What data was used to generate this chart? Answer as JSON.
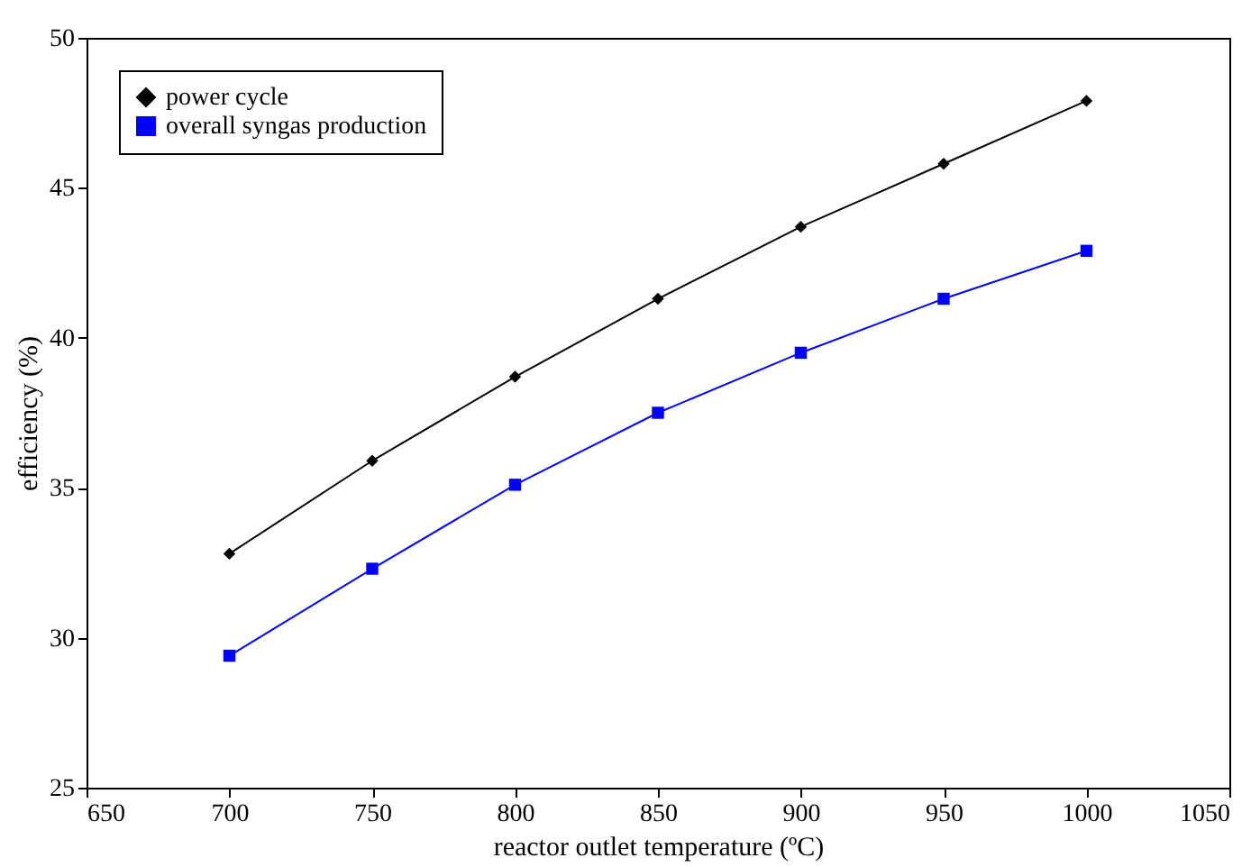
{
  "chart_data": {
    "type": "line",
    "xlabel": "reactor outlet temperature (ºC)",
    "ylabel": "efficiency (%)",
    "x": [
      700,
      750,
      800,
      850,
      900,
      950,
      1000
    ],
    "series": [
      {
        "name": "power cycle",
        "color": "#000000",
        "marker": "diamond",
        "values": [
          32.8,
          35.9,
          38.7,
          41.3,
          43.7,
          45.8,
          47.9
        ]
      },
      {
        "name": "overall syngas production",
        "color": "#0000ff",
        "marker": "square",
        "values": [
          29.4,
          32.3,
          35.1,
          37.5,
          39.5,
          41.3,
          42.9
        ]
      }
    ],
    "xlim": [
      650,
      1050
    ],
    "xticks": [
      650,
      700,
      750,
      800,
      850,
      900,
      950,
      1000,
      1050
    ],
    "ylim": [
      25,
      50
    ],
    "yticks": [
      25,
      30,
      35,
      40,
      45,
      50
    ],
    "grid": false,
    "legend": "top left",
    "line_style": "solid"
  }
}
